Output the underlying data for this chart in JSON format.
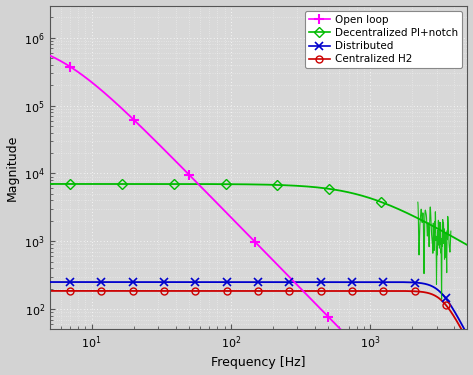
{
  "xlabel": "Frequency [Hz]",
  "ylabel": "Magnitude",
  "xlim_min": 5,
  "xlim_max": 5000,
  "ylim_min": 50,
  "ylim_max": 3000000,
  "background_color": "#d3d3d3",
  "plot_bg_color": "#d8d8d8",
  "grid_color": "#ffffff",
  "open_loop_color": "#ff00ff",
  "decentralized_color": "#00bb00",
  "distributed_color": "#0000cc",
  "centralized_color": "#cc0000",
  "legend_labels": [
    "Open loop",
    "Decentralized PI+notch",
    "Distributed",
    "Centralized H2"
  ],
  "open_loop_level": 1000000,
  "open_loop_knee": 5.0,
  "open_loop_slope": 2.0,
  "decentralized_level": 7000,
  "decentralized_knee": 1500,
  "distributed_level": 250,
  "distributed_knee": 3200,
  "centralized_level": 180,
  "centralized_knee": 3100
}
